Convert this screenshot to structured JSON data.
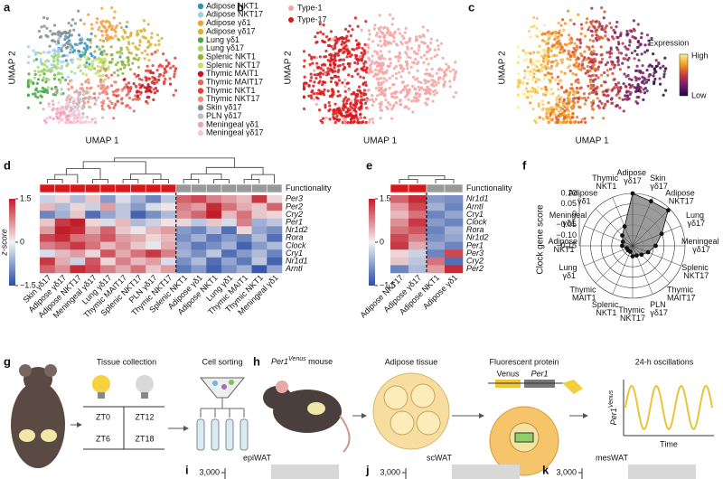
{
  "panel_labels": [
    "a",
    "b",
    "c",
    "d",
    "e",
    "f",
    "g",
    "h",
    "i",
    "j",
    "k"
  ],
  "umap": {
    "x_label": "UMAP 1",
    "y_label": "UMAP 2",
    "clusters": [
      {
        "name": "Adipose NKT1",
        "color": "#2f8fc0"
      },
      {
        "name": "Adipose NKT17",
        "color": "#9fd0ea"
      },
      {
        "name": "Adipose γδ1",
        "color": "#f3a03c"
      },
      {
        "name": "Adipose γδ17",
        "color": "#d9b42e"
      },
      {
        "name": "Lung γδ1",
        "color": "#4aa84a"
      },
      {
        "name": "Lung γδ17",
        "color": "#a8d86c"
      },
      {
        "name": "Splenic NKT1",
        "color": "#8fb43a"
      },
      {
        "name": "Splenic NKT17",
        "color": "#c6dc70"
      },
      {
        "name": "Thymic MAIT1",
        "color": "#c8161d"
      },
      {
        "name": "Thymic MAIT17",
        "color": "#e5675b"
      },
      {
        "name": "Thymic NKT1",
        "color": "#e2413a"
      },
      {
        "name": "Thymic NKT17",
        "color": "#f08c7f"
      },
      {
        "name": "Skin γδ17",
        "color": "#8c8c8c"
      },
      {
        "name": "PLN γδ17",
        "color": "#bdbdbd"
      },
      {
        "name": "Meningeal γδ1",
        "color": "#f29fbd"
      },
      {
        "name": "Meningeal γδ17",
        "color": "#f8c8d8"
      }
    ],
    "functionality": [
      {
        "name": "Type-1",
        "color": "#f2a5a5"
      },
      {
        "name": "Type-17",
        "color": "#d7191c"
      }
    ],
    "expression": {
      "title": "Expression",
      "high": "High",
      "low": "Low",
      "colors": [
        "#1b0c3e",
        "#6e1d6f",
        "#c7393f",
        "#f49a1e",
        "#f8f09a"
      ]
    }
  },
  "chart_data": [
    {
      "type": "heatmap",
      "functionality_label": "Functionality",
      "colorbar_label": "z-score",
      "zlim": [
        -1.5,
        1.5
      ],
      "zticks": [
        1.5,
        0,
        {
          "value": -1.5,
          "label": "−1.5"
        }
      ],
      "colorscale": [
        "#2a4ea6",
        "#f2f2f2",
        "#c21d2a"
      ],
      "rows": [
        "Per3",
        "Per2",
        "Cry2",
        "Per1",
        "Nr1d2",
        "Rora",
        "Clock",
        "Cry1",
        "Nr1d1",
        "Arntl"
      ],
      "columns": [
        "Skin γδ17",
        "Adipose γδ17",
        "Adipose NKT17",
        "Meningeal γδ17",
        "Lung γδ17",
        "Thymic MAIT17",
        "Splenic NKT17",
        "PLN γδ17",
        "Thymic NKT17",
        "Splenic NKT1",
        "Adipose γδ1",
        "Adipose NKT1",
        "Lung γδ1",
        "Thymic MAIT1",
        "Thymic NKT1",
        "Meningeal γδ1"
      ],
      "column_colors": [
        "#d7191c",
        "#d7191c",
        "#d7191c",
        "#d7191c",
        "#d7191c",
        "#d7191c",
        "#d7191c",
        "#d7191c",
        "#d7191c",
        "#999999",
        "#999999",
        "#999999",
        "#999999",
        "#999999",
        "#999999",
        "#999999"
      ],
      "values": [
        [
          -0.3,
          0.2,
          -0.5,
          0.3,
          -0.8,
          -0.2,
          -0.6,
          -1.0,
          -0.4,
          1.0,
          1.2,
          0.8,
          0.6,
          0.4,
          1.3,
          0.2
        ],
        [
          0.4,
          -0.5,
          0.2,
          -0.3,
          0.6,
          -0.4,
          -0.8,
          -0.2,
          0.1,
          0.8,
          0.6,
          1.4,
          0.9,
          0.5,
          0.3,
          1.0
        ],
        [
          -1.0,
          -0.6,
          0.3,
          -1.2,
          -0.7,
          -0.4,
          -1.3,
          -0.9,
          -0.5,
          0.7,
          1.0,
          1.5,
          0.4,
          0.9,
          0.3,
          0.2
        ],
        [
          0.3,
          1.3,
          1.5,
          0.2,
          -0.2,
          0.4,
          -0.5,
          -0.3,
          0.1,
          0.2,
          -0.4,
          0.3,
          -0.2,
          0.8,
          -0.6,
          -0.4
        ],
        [
          0.6,
          1.5,
          1.4,
          0.5,
          1.0,
          0.3,
          0.1,
          0.4,
          0.6,
          -0.8,
          -1.0,
          -0.5,
          -1.2,
          0.2,
          -0.7,
          -0.9
        ],
        [
          1.2,
          1.4,
          0.9,
          0.8,
          1.1,
          0.6,
          0.5,
          0.2,
          0.4,
          -0.9,
          -0.6,
          -1.1,
          -0.8,
          -1.0,
          -0.5,
          -1.2
        ],
        [
          0.8,
          1.0,
          1.3,
          0.9,
          0.4,
          0.7,
          0.3,
          -0.1,
          0.5,
          -0.7,
          -1.1,
          -0.9,
          -0.6,
          -1.3,
          -0.8,
          -0.5
        ],
        [
          -0.2,
          0.4,
          0.6,
          0.2,
          1.1,
          0.5,
          0.9,
          1.3,
          0.8,
          -0.6,
          -0.9,
          -0.4,
          -1.2,
          -0.8,
          -0.5,
          -1.0
        ],
        [
          1.3,
          0.5,
          -0.3,
          1.1,
          0.2,
          0.8,
          0.4,
          0.6,
          -0.2,
          -0.9,
          -0.5,
          -1.2,
          -0.7,
          -1.1,
          -0.4,
          -1.3
        ],
        [
          1.0,
          0.7,
          1.4,
          1.2,
          0.8,
          0.5,
          0.9,
          0.3,
          0.6,
          -1.1,
          -0.8,
          -1.3,
          -0.9,
          -0.6,
          -1.4,
          -0.7
        ]
      ]
    },
    {
      "type": "heatmap",
      "functionality_label": "Functionality",
      "zlim": [
        -1.5,
        1.5
      ],
      "zticks": [
        1.5,
        0,
        {
          "value": -1.5,
          "label": "−1.5"
        }
      ],
      "colorscale": [
        "#2a4ea6",
        "#f2f2f2",
        "#c21d2a"
      ],
      "rows": [
        "Nr1d1",
        "Arntl",
        "Cry1",
        "Clock",
        "Rora",
        "Nr1d2",
        "Per1",
        "Per3",
        "Cry2",
        "Per2"
      ],
      "columns": [
        "Adipose NKT17",
        "Adipose γδ17",
        "Adipose NKT1",
        "Adipose γδ1"
      ],
      "column_colors": [
        "#d7191c",
        "#d7191c",
        "#999999",
        "#999999"
      ],
      "values": [
        [
          1.0,
          1.4,
          -0.8,
          -0.9
        ],
        [
          0.6,
          1.2,
          -0.6,
          -1.0
        ],
        [
          0.4,
          0.9,
          -1.0,
          -0.7
        ],
        [
          0.7,
          1.3,
          -0.8,
          -1.0
        ],
        [
          0.9,
          1.1,
          -1.0,
          -0.6
        ],
        [
          1.2,
          0.8,
          -0.9,
          -0.7
        ],
        [
          1.3,
          0.5,
          -0.7,
          -1.0
        ],
        [
          0.2,
          -0.3,
          -1.0,
          1.2
        ],
        [
          0.3,
          -0.4,
          0.9,
          -1.2
        ],
        [
          -1.0,
          -0.5,
          0.6,
          1.4
        ]
      ]
    },
    {
      "type": "radar",
      "ylabel": "Clock gene score",
      "color": "#8a8a8a",
      "categories": [
        "Adipose γδ17",
        "Skin γδ17",
        "Adipose NKT17",
        "Lung γδ17",
        "Meningeal γδ17",
        "Splenic NKT17",
        "Thymic MAIT17",
        "PLN γδ17",
        "Thymic NKT17",
        "Splenic NKT1",
        "Thymic MAIT1",
        "Lung γδ1",
        "Adipose NKT1",
        "Meningeal γδ1",
        "Adipose γδ1",
        "Thymic NKT1"
      ],
      "values": [
        0.1,
        0.08,
        0.09,
        0.0,
        -0.04,
        -0.07,
        -0.09,
        -0.1,
        -0.1,
        -0.12,
        -0.12,
        -0.12,
        -0.1,
        -0.1,
        -0.08,
        -0.05
      ],
      "rlim": [
        -0.15,
        0.1
      ],
      "rticks": [
        {
          "value": 0.1,
          "label": "0.10"
        },
        0.05,
        0,
        {
          "value": -0.05,
          "label": "−0.05"
        },
        {
          "value": -0.1,
          "label": "−0.10"
        },
        {
          "value": -0.15,
          "label": "−0.15"
        }
      ]
    }
  ],
  "schematic_g": {
    "tissue_collection": "Tissue collection",
    "cell_sorting": "Cell sorting",
    "zt": [
      "ZT0",
      "ZT12",
      "ZT6",
      "ZT18"
    ]
  },
  "schematic_h": {
    "mouse_gene": "Per1",
    "mouse_allele": "Venus",
    "mouse_suffix": "mouse",
    "adipose": "Adipose tissue",
    "protein": "Fluorescent protein",
    "venus": "Venus",
    "per1": "Per1",
    "oscillations": "24-h oscillations",
    "ylabel_gene": "Per1",
    "ylabel_allele": "Venus",
    "xlabel": "Time"
  },
  "bottom_panels": [
    {
      "title": "epiWAT",
      "yticks": [
        {
          "value": 3000,
          "label": "3,000"
        }
      ]
    },
    {
      "title": "scWAT",
      "yticks": [
        {
          "value": 3000,
          "label": "3,000"
        }
      ]
    },
    {
      "title": "mesWAT",
      "yticks": [
        {
          "value": 3000,
          "label": "3,000"
        }
      ]
    }
  ]
}
